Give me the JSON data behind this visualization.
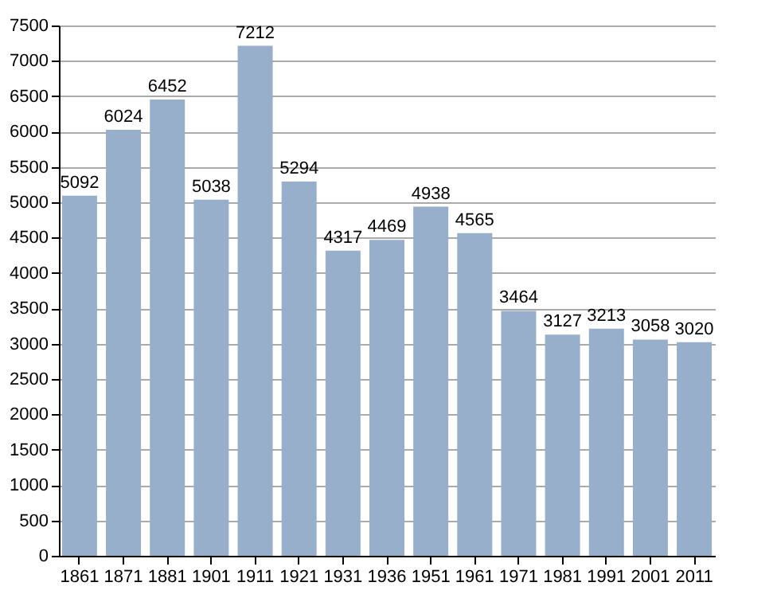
{
  "chart_data": {
    "type": "bar",
    "categories": [
      "1861",
      "1871",
      "1881",
      "1901",
      "1911",
      "1921",
      "1931",
      "1936",
      "1951",
      "1961",
      "1971",
      "1981",
      "1991",
      "2001",
      "2011"
    ],
    "values": [
      5092,
      6024,
      6452,
      5038,
      7212,
      5294,
      4317,
      4469,
      4938,
      4565,
      3464,
      3127,
      3213,
      3058,
      3020
    ],
    "color": "#98afcb",
    "ylim": [
      0,
      7500
    ],
    "yticks": [
      0,
      500,
      1000,
      1500,
      2000,
      2500,
      3000,
      3500,
      4000,
      4500,
      5000,
      5500,
      6000,
      6500,
      7000,
      7500
    ],
    "grid": "y",
    "data_labels": true
  }
}
